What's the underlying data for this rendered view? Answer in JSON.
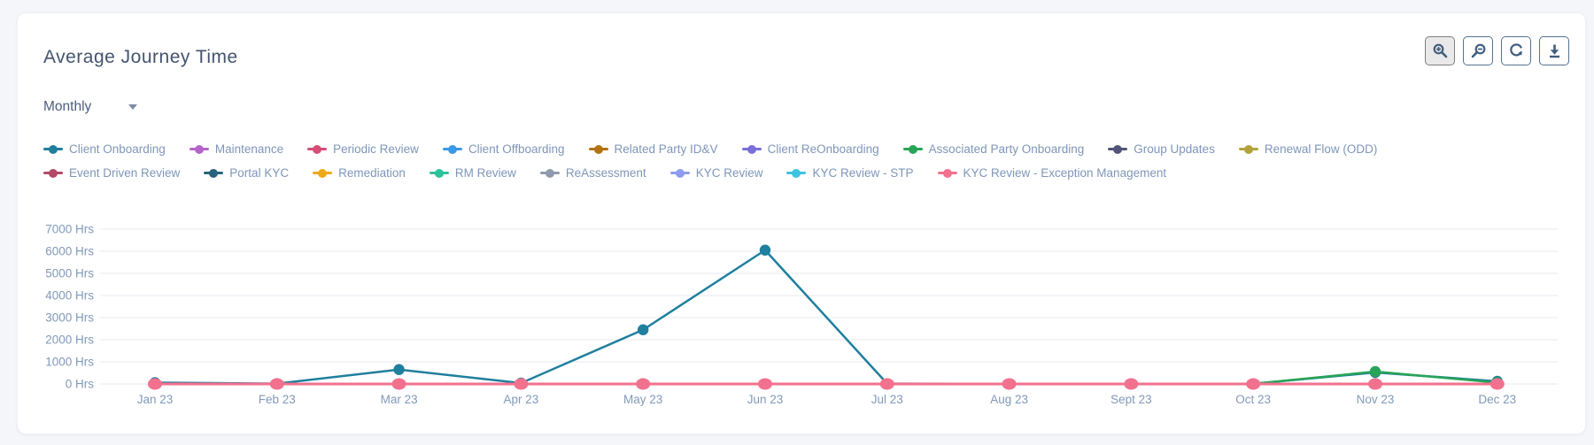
{
  "header": {
    "title": "Average Journey Time"
  },
  "toolbar": {
    "buttons": [
      {
        "icon": "zoom-in-icon",
        "active": true
      },
      {
        "icon": "zoom-out-icon",
        "active": false
      },
      {
        "icon": "reset-zoom-icon",
        "active": false
      },
      {
        "icon": "download-icon",
        "active": false
      }
    ],
    "icon_color": "#3f5d7e"
  },
  "filter": {
    "selected": "Monthly"
  },
  "chart_data": {
    "type": "line",
    "title": "Average Journey Time",
    "xlabel": "",
    "ylabel": "Hrs",
    "ylim": [
      0,
      7000
    ],
    "grid": true,
    "legend_position": "top",
    "y_ticks": [
      "0 Hrs",
      "1000 Hrs",
      "2000 Hrs",
      "3000 Hrs",
      "4000 Hrs",
      "5000 Hrs",
      "6000 Hrs",
      "7000 Hrs"
    ],
    "categories": [
      "Jan 23",
      "Feb 23",
      "Mar 23",
      "Apr 23",
      "May 23",
      "Jun 23",
      "Jul 23",
      "Aug 23",
      "Sept 23",
      "Oct 23",
      "Nov 23",
      "Dec 23"
    ],
    "series": [
      {
        "name": "Client Onboarding",
        "color": "#1f7f9e",
        "values": [
          60,
          15,
          650,
          40,
          2450,
          6050,
          15,
          5,
          5,
          10,
          520,
          120
        ]
      },
      {
        "name": "Maintenance",
        "color": "#b565c9",
        "values": [
          0,
          0,
          0,
          0,
          0,
          0,
          0,
          0,
          0,
          0,
          0,
          0
        ]
      },
      {
        "name": "Periodic Review",
        "color": "#d64d77",
        "values": [
          0,
          0,
          0,
          0,
          0,
          0,
          0,
          0,
          0,
          0,
          0,
          0
        ]
      },
      {
        "name": "Client Offboarding",
        "color": "#3b98e8",
        "values": [
          0,
          0,
          0,
          0,
          0,
          0,
          0,
          0,
          0,
          0,
          0,
          0
        ]
      },
      {
        "name": "Related Party ID&V",
        "color": "#b37310",
        "values": [
          0,
          0,
          0,
          0,
          0,
          0,
          0,
          0,
          0,
          0,
          0,
          0
        ]
      },
      {
        "name": "Client ReOnboarding",
        "color": "#7a6ed9",
        "values": [
          0,
          0,
          0,
          0,
          0,
          0,
          0,
          0,
          0,
          0,
          0,
          0
        ]
      },
      {
        "name": "Associated Party Onboarding",
        "color": "#27a457",
        "values": [
          0,
          0,
          0,
          0,
          0,
          0,
          0,
          0,
          0,
          5,
          560,
          60
        ]
      },
      {
        "name": "Group Updates",
        "color": "#525577",
        "values": [
          0,
          0,
          0,
          0,
          0,
          0,
          0,
          0,
          0,
          0,
          0,
          0
        ]
      },
      {
        "name": "Renewal Flow (ODD)",
        "color": "#b3a23c",
        "values": [
          0,
          0,
          0,
          0,
          0,
          0,
          0,
          0,
          0,
          0,
          0,
          0
        ]
      },
      {
        "name": "Event Driven Review",
        "color": "#b24a67",
        "values": [
          0,
          0,
          0,
          0,
          0,
          0,
          0,
          0,
          0,
          0,
          0,
          0
        ]
      },
      {
        "name": "Portal KYC",
        "color": "#28647d",
        "values": [
          0,
          0,
          0,
          0,
          0,
          0,
          0,
          0,
          0,
          0,
          0,
          0
        ]
      },
      {
        "name": "Remediation",
        "color": "#eda918",
        "values": [
          0,
          0,
          0,
          0,
          0,
          0,
          0,
          0,
          0,
          0,
          0,
          0
        ]
      },
      {
        "name": "RM Review",
        "color": "#2cc29b",
        "values": [
          0,
          0,
          0,
          0,
          0,
          0,
          0,
          0,
          0,
          0,
          0,
          0
        ]
      },
      {
        "name": "ReAssessment",
        "color": "#8e9aab",
        "values": [
          0,
          0,
          0,
          0,
          0,
          0,
          0,
          0,
          0,
          0,
          0,
          0
        ]
      },
      {
        "name": "KYC Review",
        "color": "#8d9cee",
        "values": [
          0,
          0,
          0,
          0,
          0,
          0,
          0,
          0,
          0,
          0,
          0,
          0
        ]
      },
      {
        "name": "KYC Review - STP",
        "color": "#3ec3e0",
        "values": [
          0,
          0,
          0,
          0,
          0,
          0,
          0,
          0,
          0,
          0,
          0,
          0
        ]
      },
      {
        "name": "KYC Review - Exception Management",
        "color": "#f2718e",
        "values": [
          0,
          0,
          0,
          0,
          0,
          0,
          0,
          0,
          0,
          0,
          0,
          0
        ]
      }
    ]
  }
}
